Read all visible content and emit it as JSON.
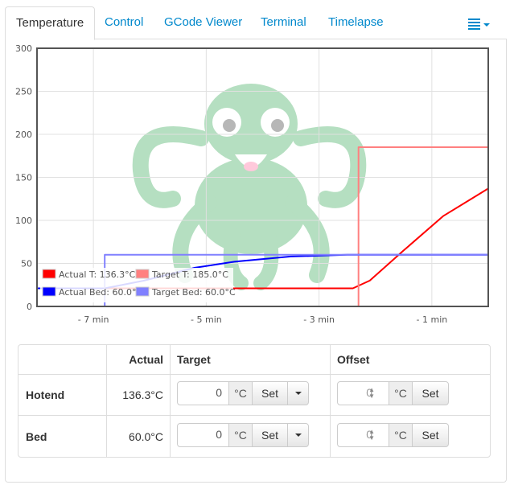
{
  "tabs": [
    {
      "label": "Temperature",
      "active": true
    },
    {
      "label": "Control"
    },
    {
      "label": "GCode Viewer"
    },
    {
      "label": "Terminal"
    },
    {
      "label": "Timelapse"
    }
  ],
  "menu_icon": "list-menu-icon",
  "colors": {
    "actual_tool": "#ff0000",
    "target_tool": "#ff8080",
    "actual_bed": "#0000ff",
    "target_bed": "#8080ff",
    "link": "#0088cc"
  },
  "chart_data": {
    "type": "line",
    "ylim": [
      0,
      300
    ],
    "xlim": [
      -8,
      0
    ],
    "y_ticks": [
      0,
      50,
      100,
      150,
      200,
      250,
      300
    ],
    "x_ticks": [
      {
        "value": -7,
        "label": "- 7 min"
      },
      {
        "value": -5,
        "label": "- 5 min"
      },
      {
        "value": -3,
        "label": "- 3 min"
      },
      {
        "value": -1,
        "label": "- 1 min"
      }
    ],
    "grid": true,
    "legend_position": "bottom-left",
    "series": [
      {
        "name": "Actual T: 136.3°C",
        "color": "#ff0000",
        "points": [
          [
            -8,
            21
          ],
          [
            -4,
            21
          ],
          [
            -2.4,
            21
          ],
          [
            -2.1,
            30
          ],
          [
            -1.5,
            65
          ],
          [
            -0.8,
            105
          ],
          [
            0,
            137
          ]
        ]
      },
      {
        "name": "Target T: 185.0°C",
        "color": "#ff8080",
        "points": [
          [
            -8,
            0
          ],
          [
            -2.3,
            0
          ],
          [
            -2.3,
            185
          ],
          [
            0,
            185
          ]
        ]
      },
      {
        "name": "Actual Bed: 60.0°C",
        "color": "#0000ff",
        "points": [
          [
            -8,
            21
          ],
          [
            -6.8,
            21
          ],
          [
            -6.1,
            30
          ],
          [
            -5.2,
            45
          ],
          [
            -4.5,
            52
          ],
          [
            -3.5,
            58
          ],
          [
            -2.5,
            60
          ],
          [
            0,
            60
          ]
        ]
      },
      {
        "name": "Target Bed: 60.0°C",
        "color": "#8080ff",
        "points": [
          [
            -8,
            0
          ],
          [
            -6.8,
            0
          ],
          [
            -6.8,
            60
          ],
          [
            0,
            60
          ]
        ]
      }
    ]
  },
  "table": {
    "headers": {
      "actual": "Actual",
      "target": "Target",
      "offset": "Offset"
    },
    "unit": "°C",
    "set_label": "Set",
    "rows": [
      {
        "name": "Hotend",
        "actual": "136.3°C",
        "target": "0",
        "offset": "0"
      },
      {
        "name": "Bed",
        "actual": "60.0°C",
        "target": "0",
        "offset": "0"
      }
    ]
  }
}
